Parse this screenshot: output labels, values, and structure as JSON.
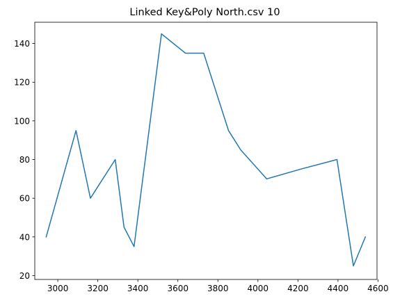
{
  "chart_data": {
    "type": "line",
    "title": "Linked Key&Poly North.csv 10",
    "xlabel": "",
    "ylabel": "",
    "xlim": [
      2885,
      4595
    ],
    "ylim": [
      18,
      151
    ],
    "x_ticks": [
      3000,
      3200,
      3400,
      3600,
      3800,
      4000,
      4200,
      4400,
      4600
    ],
    "y_ticks": [
      20,
      40,
      60,
      80,
      100,
      120,
      140
    ],
    "grid": false,
    "series": [
      {
        "color": "#1f77b4",
        "x": [
          2942,
          3091,
          3163,
          3287,
          3331,
          3381,
          3518,
          3638,
          3729,
          3853,
          3914,
          4044,
          4212,
          4395,
          4477,
          4537
        ],
        "y": [
          40,
          95,
          60,
          80,
          45,
          35,
          145,
          135,
          135,
          95,
          85,
          70,
          75,
          80,
          25,
          40
        ]
      }
    ]
  }
}
